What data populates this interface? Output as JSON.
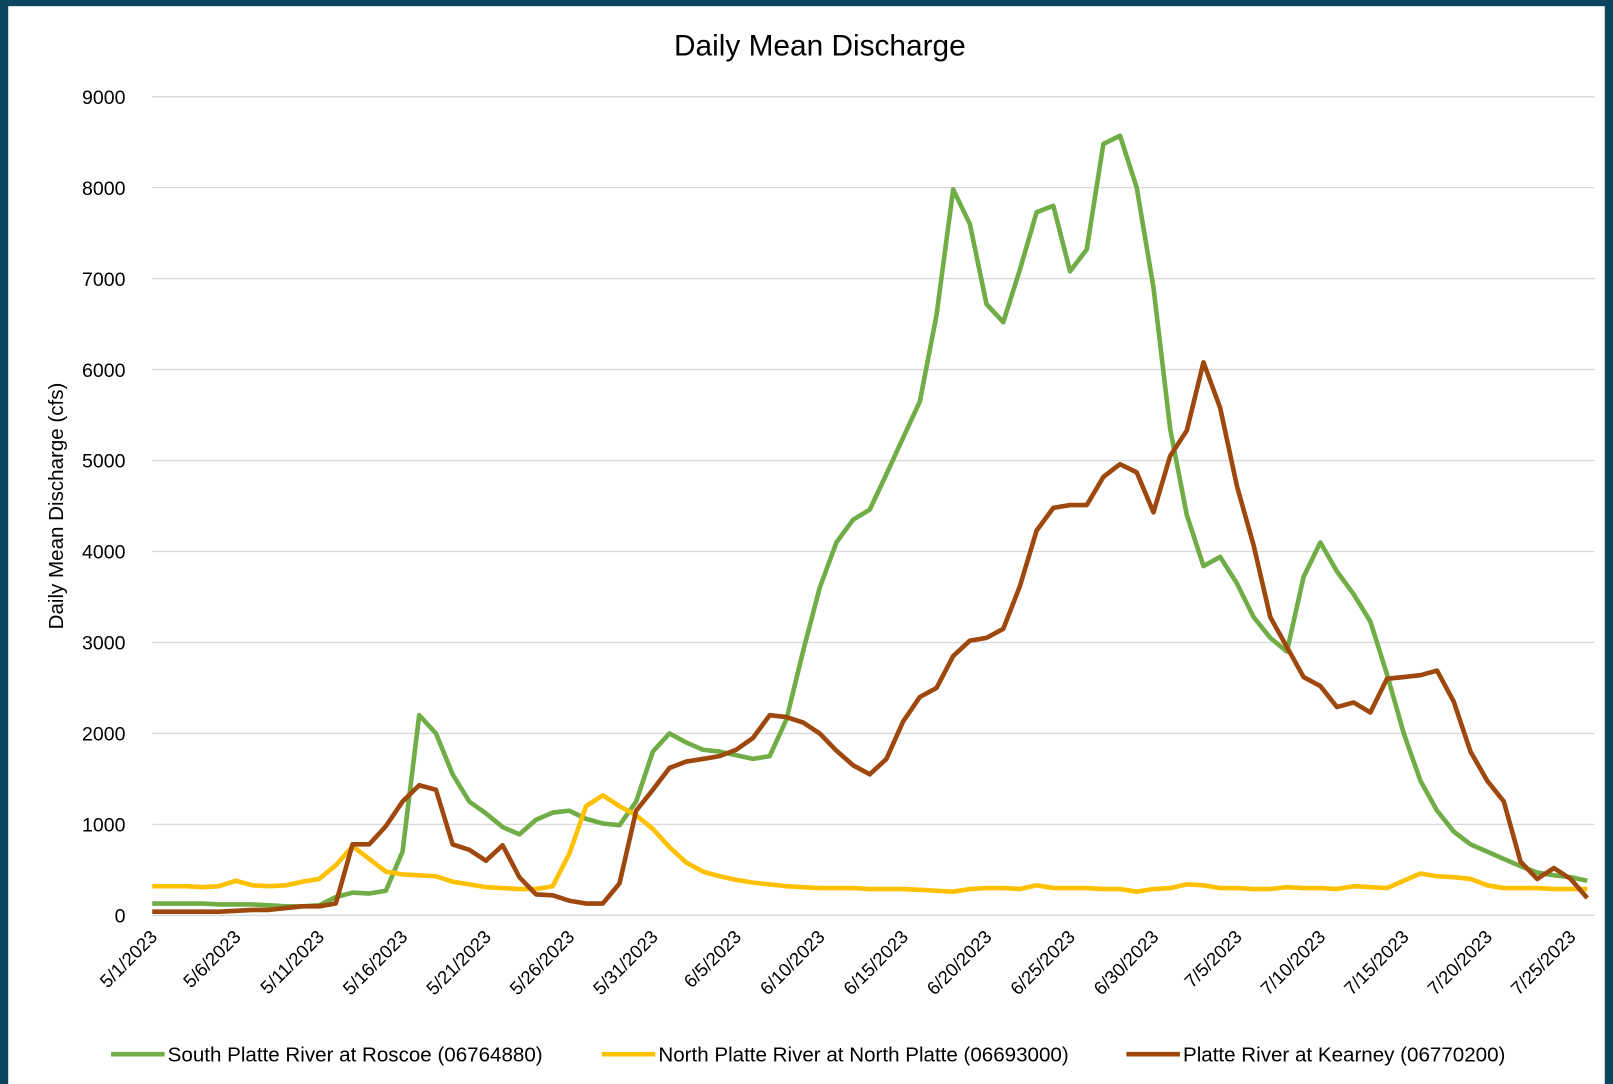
{
  "chart_data": {
    "type": "line",
    "title": "Daily Mean Discharge",
    "y_label": "Daily Mean Discharge (cfs)",
    "categories": [
      "5/1/2023",
      null,
      null,
      null,
      null,
      "5/6/2023",
      null,
      null,
      null,
      null,
      "5/11/2023",
      null,
      null,
      null,
      null,
      "5/16/2023",
      null,
      null,
      null,
      null,
      "5/21/2023",
      null,
      null,
      null,
      null,
      "5/26/2023",
      null,
      null,
      null,
      null,
      "5/31/2023",
      null,
      null,
      null,
      null,
      "6/5/2023",
      null,
      null,
      null,
      null,
      "6/10/2023",
      null,
      null,
      null,
      null,
      "6/15/2023",
      null,
      null,
      null,
      null,
      "6/20/2023",
      null,
      null,
      null,
      null,
      "6/25/2023",
      null,
      null,
      null,
      null,
      "6/30/2023",
      null,
      null,
      null,
      null,
      "7/5/2023",
      null,
      null,
      null,
      null,
      "7/10/2023",
      null,
      null,
      null,
      null,
      "7/15/2023",
      null,
      null,
      null,
      null,
      "7/20/2023",
      null,
      null,
      null,
      null,
      "7/25/2023",
      null
    ],
    "series": [
      {
        "name": "South Platte River at Roscoe (06764880)",
        "color": "#70ad47",
        "values": [
          130,
          130,
          130,
          130,
          120,
          120,
          120,
          110,
          100,
          100,
          110,
          200,
          250,
          240,
          270,
          700,
          2200,
          2000,
          1550,
          1250,
          1120,
          970,
          890,
          1050,
          1130,
          1150,
          1060,
          1010,
          990,
          1250,
          1800,
          2000,
          1900,
          1820,
          1800,
          1760,
          1720,
          1750,
          2150,
          2900,
          3600,
          4100,
          4350,
          4460,
          4850,
          5250,
          5650,
          6600,
          7980,
          7600,
          6720,
          6520,
          7100,
          7730,
          7800,
          7080,
          7320,
          8480,
          8570,
          8000,
          6900,
          5350,
          4400,
          3840,
          3940,
          3650,
          3280,
          3050,
          2900,
          3720,
          4100,
          3780,
          3530,
          3230,
          2650,
          2000,
          1480,
          1150,
          920,
          780,
          700,
          620,
          540,
          470,
          440,
          420,
          380
        ]
      },
      {
        "name": "North Platte River at North Platte (06693000)",
        "color": "#ffc000",
        "values": [
          320,
          320,
          320,
          310,
          320,
          380,
          330,
          320,
          330,
          370,
          400,
          550,
          760,
          620,
          480,
          450,
          440,
          430,
          370,
          340,
          310,
          300,
          290,
          290,
          320,
          680,
          1200,
          1320,
          1200,
          1100,
          950,
          750,
          580,
          480,
          430,
          390,
          360,
          340,
          320,
          310,
          300,
          300,
          300,
          290,
          290,
          290,
          280,
          270,
          260,
          290,
          300,
          300,
          290,
          330,
          300,
          300,
          300,
          290,
          290,
          260,
          290,
          300,
          340,
          330,
          300,
          300,
          290,
          290,
          310,
          300,
          300,
          290,
          320,
          310,
          300,
          380,
          460,
          430,
          420,
          400,
          330,
          300,
          300,
          300,
          290,
          290,
          290
        ]
      },
      {
        "name": "Platte River at Kearney (06770200)",
        "color": "#9e480e",
        "values": [
          40,
          40,
          40,
          40,
          40,
          50,
          60,
          60,
          80,
          100,
          100,
          130,
          780,
          780,
          980,
          1250,
          1430,
          1380,
          780,
          720,
          600,
          770,
          420,
          230,
          220,
          160,
          130,
          130,
          350,
          1150,
          1380,
          1620,
          1690,
          1720,
          1750,
          1820,
          1950,
          2200,
          2180,
          2120,
          2000,
          1810,
          1650,
          1550,
          1720,
          2130,
          2400,
          2500,
          2850,
          3020,
          3050,
          3150,
          3620,
          4230,
          4480,
          4510,
          4510,
          4820,
          4960,
          4870,
          4430,
          5050,
          5330,
          6080,
          5580,
          4720,
          4070,
          3280,
          2950,
          2620,
          2520,
          2290,
          2340,
          2230,
          2600,
          2620,
          2640,
          2690,
          2350,
          1800,
          1480,
          1250,
          590,
          400,
          520,
          400,
          190
        ]
      }
    ],
    "ylim": [
      0,
      9000
    ],
    "yticks": [
      0,
      1000,
      2000,
      3000,
      4000,
      5000,
      6000,
      7000,
      8000,
      9000
    ],
    "grid": true,
    "legend": "bottom"
  }
}
